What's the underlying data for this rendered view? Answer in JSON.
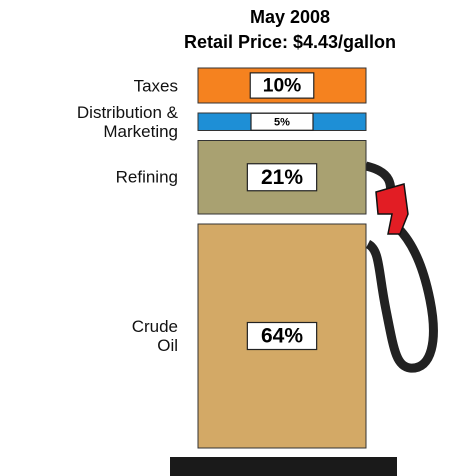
{
  "chart_data": {
    "type": "bar",
    "title": "May 2008",
    "subtitle": "Retail Price: $4.43/gallon",
    "categories": [
      "Taxes",
      "Distribution &\nMarketing",
      "Refining",
      "Crude\nOil"
    ],
    "values": [
      10,
      5,
      21,
      64
    ],
    "value_labels": [
      "10%",
      "5%",
      "21%",
      "64%"
    ],
    "colors": [
      "#f5821f",
      "#1e8fd6",
      "#a9a171",
      "#d3a966"
    ]
  }
}
